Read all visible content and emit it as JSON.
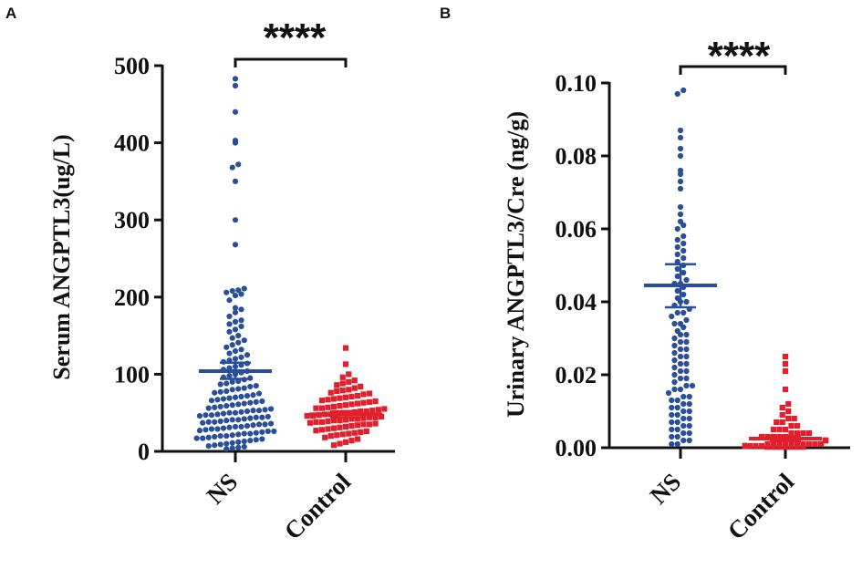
{
  "colors": {
    "ns": "#2a4f9a",
    "control": "#e0202c",
    "axis": "#111111"
  },
  "chart_data": [
    {
      "panel": "A",
      "type": "scatter",
      "subtype": "dot-plot-with-mean-and-error-bars",
      "ylabel": "Serum ANGPTL3(ug/L)",
      "xlabel": "",
      "ylim": [
        0,
        500
      ],
      "yticks": [
        0,
        100,
        200,
        300,
        400,
        500
      ],
      "categories": [
        "NS",
        "Control"
      ],
      "significance": "****",
      "series": [
        {
          "name": "NS",
          "marker": "circle",
          "color": "#2a4f9a",
          "mean": 104,
          "error": [
            94,
            115
          ],
          "values": [
            483,
            474,
            440,
            403,
            400,
            372,
            368,
            350,
            300,
            268,
            211,
            209,
            208,
            206,
            204,
            202,
            196,
            186,
            184,
            180,
            175,
            170,
            168,
            165,
            162,
            158,
            155,
            150,
            147,
            144,
            141,
            138,
            135,
            132,
            130,
            127,
            125,
            122,
            120,
            118,
            116,
            114,
            112,
            110,
            108,
            106,
            104,
            102,
            100,
            98,
            96,
            95,
            93,
            91,
            90,
            88,
            87,
            85,
            84,
            82,
            81,
            80,
            78,
            77,
            76,
            75,
            73,
            72,
            71,
            70,
            69,
            68,
            67,
            66,
            65,
            64,
            63,
            62,
            61,
            60,
            59,
            58,
            57,
            56,
            55,
            54,
            53,
            53,
            52,
            51,
            50,
            50,
            49,
            48,
            47,
            47,
            46,
            45,
            44,
            44,
            43,
            42,
            41,
            41,
            40,
            39,
            38,
            38,
            37,
            36,
            35,
            35,
            34,
            33,
            32,
            32,
            31,
            30,
            29,
            29,
            28,
            27,
            26,
            26,
            25,
            24,
            23,
            23,
            22,
            21,
            20,
            20,
            19,
            18,
            17,
            17,
            16,
            15,
            14,
            13,
            12,
            11,
            10,
            9,
            8,
            7,
            6,
            5,
            4,
            3
          ]
        },
        {
          "name": "Control",
          "marker": "square",
          "color": "#e0202c",
          "mean": 48,
          "error": [
            44,
            52
          ],
          "values": [
            134,
            113,
            100,
            96,
            92,
            90,
            88,
            86,
            84,
            82,
            80,
            79,
            78,
            76,
            75,
            74,
            72,
            71,
            70,
            69,
            68,
            67,
            66,
            65,
            64,
            63,
            62,
            61,
            60,
            59,
            58,
            57,
            56,
            56,
            55,
            54,
            53,
            52,
            52,
            51,
            50,
            50,
            49,
            48,
            48,
            47,
            46,
            46,
            45,
            44,
            44,
            43,
            42,
            42,
            41,
            40,
            40,
            39,
            38,
            38,
            37,
            36,
            35,
            35,
            34,
            33,
            32,
            31,
            30,
            29,
            28,
            27,
            26,
            25,
            24,
            23,
            22,
            21,
            20,
            18,
            16,
            14,
            12,
            10,
            8
          ]
        }
      ]
    },
    {
      "panel": "B",
      "type": "scatter",
      "subtype": "dot-plot-with-mean-and-error-bars",
      "ylabel": "Urinary ANGPTL3/Cre (ng/g)",
      "xlabel": "",
      "ylim": [
        0,
        0.1
      ],
      "yticks": [
        "0.00",
        "0.02",
        "0.04",
        "0.06",
        "0.08",
        "0.10"
      ],
      "categories": [
        "NS",
        "Control"
      ],
      "significance": "****",
      "series": [
        {
          "name": "NS",
          "marker": "circle",
          "color": "#2a4f9a",
          "mean": 0.0445,
          "error": [
            0.0385,
            0.0503
          ],
          "values": [
            0.098,
            0.097,
            0.087,
            0.085,
            0.082,
            0.08,
            0.076,
            0.075,
            0.073,
            0.071,
            0.066,
            0.064,
            0.062,
            0.061,
            0.06,
            0.058,
            0.057,
            0.056,
            0.055,
            0.054,
            0.053,
            0.052,
            0.051,
            0.05,
            0.049,
            0.048,
            0.047,
            0.046,
            0.045,
            0.045,
            0.044,
            0.043,
            0.042,
            0.041,
            0.04,
            0.04,
            0.039,
            0.038,
            0.037,
            0.037,
            0.036,
            0.035,
            0.034,
            0.034,
            0.033,
            0.032,
            0.031,
            0.031,
            0.03,
            0.029,
            0.029,
            0.028,
            0.027,
            0.027,
            0.026,
            0.025,
            0.025,
            0.024,
            0.023,
            0.023,
            0.022,
            0.021,
            0.021,
            0.02,
            0.019,
            0.019,
            0.018,
            0.017,
            0.017,
            0.016,
            0.016,
            0.015,
            0.014,
            0.014,
            0.013,
            0.013,
            0.012,
            0.012,
            0.011,
            0.011,
            0.01,
            0.01,
            0.009,
            0.009,
            0.008,
            0.008,
            0.007,
            0.007,
            0.006,
            0.006,
            0.005,
            0.005,
            0.004,
            0.004,
            0.003,
            0.003,
            0.002,
            0.002,
            0.001,
            0.001
          ]
        },
        {
          "name": "Control",
          "marker": "square",
          "color": "#e0202c",
          "mean": 0.0025,
          "error": [
            0.0018,
            0.0032
          ],
          "values": [
            0.025,
            0.023,
            0.021,
            0.016,
            0.012,
            0.011,
            0.01,
            0.009,
            0.008,
            0.008,
            0.007,
            0.007,
            0.006,
            0.006,
            0.005,
            0.005,
            0.005,
            0.004,
            0.004,
            0.004,
            0.004,
            0.003,
            0.003,
            0.003,
            0.003,
            0.003,
            0.002,
            0.002,
            0.002,
            0.002,
            0.002,
            0.002,
            0.002,
            0.001,
            0.001,
            0.001,
            0.001,
            0.001,
            0.001,
            0.001,
            0.001,
            0.001,
            0.001,
            0.0005,
            0.0005,
            0.0005,
            0.0005,
            0.0005,
            0.0005,
            0.0005,
            0.0005,
            0.0005,
            0.0005,
            0.0002,
            0.0002,
            0.0002,
            0.0002,
            0.0002,
            0.0002,
            0.0002
          ]
        }
      ]
    }
  ]
}
